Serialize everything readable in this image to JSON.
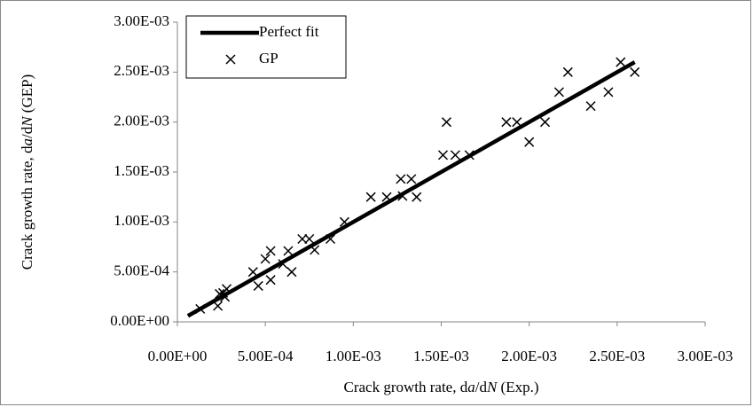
{
  "chart_data": {
    "type": "scatter",
    "x_label": [
      "Crack growth rate, d",
      "a",
      "/d",
      "N",
      " (Exp.)"
    ],
    "y_label": [
      "Crack growth rate, d",
      "a",
      "/d",
      "N",
      " (GEP)"
    ],
    "xlim": [
      0,
      0.003
    ],
    "ylim": [
      0,
      0.003
    ],
    "xticks": [
      {
        "value": 0,
        "label": "0.00E+00"
      },
      {
        "value": 0.0005,
        "label": "5.00E-04"
      },
      {
        "value": 0.001,
        "label": "1.00E-03"
      },
      {
        "value": 0.0015,
        "label": "1.50E-03"
      },
      {
        "value": 0.002,
        "label": "2.00E-03"
      },
      {
        "value": 0.0025,
        "label": "2.50E-03"
      },
      {
        "value": 0.003,
        "label": "3.00E-03"
      }
    ],
    "yticks": [
      {
        "value": 0,
        "label": "0.00E+00"
      },
      {
        "value": 0.0005,
        "label": "5.00E-04"
      },
      {
        "value": 0.001,
        "label": "1.00E-03"
      },
      {
        "value": 0.0015,
        "label": "1.50E-03"
      },
      {
        "value": 0.002,
        "label": "2.00E-03"
      },
      {
        "value": 0.0025,
        "label": "2.50E-03"
      },
      {
        "value": 0.003,
        "label": "3.00E-03"
      }
    ],
    "legend": "upper left",
    "series": [
      {
        "name": "Perfect fit",
        "color": "#000000",
        "mode": "line",
        "x": [
          6e-05,
          0.0026
        ],
        "values": [
          6e-05,
          0.0026
        ]
      },
      {
        "name": "GP",
        "color": "#000000",
        "mode": "markers",
        "x": [
          0.00013,
          0.00023,
          0.00024,
          0.00027,
          0.00028,
          0.00026,
          0.00043,
          0.00046,
          0.0005,
          0.00053,
          0.00053,
          0.0006,
          0.00063,
          0.00065,
          0.00071,
          0.00075,
          0.00078,
          0.00087,
          0.00095,
          0.0011,
          0.00119,
          0.00127,
          0.00128,
          0.00133,
          0.00136,
          0.00151,
          0.00153,
          0.00158,
          0.00166,
          0.00187,
          0.00193,
          0.002,
          0.00209,
          0.00217,
          0.00222,
          0.00235,
          0.00245,
          0.00252,
          0.0026
        ],
        "values": [
          0.00013,
          0.00016,
          0.00028,
          0.00025,
          0.00033,
          0.00029,
          0.0005,
          0.00036,
          0.00063,
          0.00071,
          0.00042,
          0.00058,
          0.00071,
          0.0005,
          0.00083,
          0.00083,
          0.00072,
          0.00083,
          0.001,
          0.00125,
          0.00125,
          0.00143,
          0.00126,
          0.00143,
          0.00125,
          0.00167,
          0.002,
          0.00167,
          0.00167,
          0.002,
          0.002,
          0.0018,
          0.002,
          0.0023,
          0.0025,
          0.00216,
          0.0023,
          0.0026,
          0.0025
        ]
      }
    ]
  }
}
